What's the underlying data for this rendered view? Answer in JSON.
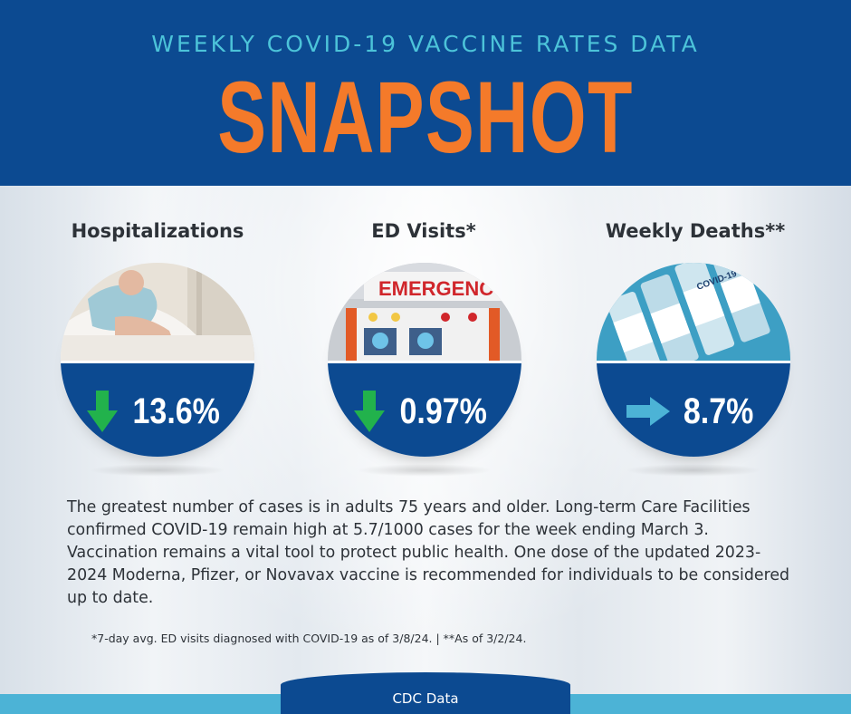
{
  "header": {
    "subtitle": "WEEKLY COVID-19 VACCINE RATES DATA",
    "title": "SNAPSHOT"
  },
  "stats": [
    {
      "label": "Hospitalizations",
      "value": "13.6%",
      "trend": "down",
      "trend_color": "#22b24c"
    },
    {
      "label": "ED Visits*",
      "value": "0.97%",
      "trend": "down",
      "trend_color": "#22b24c",
      "photo_text": "EMERGENCY"
    },
    {
      "label": "Weekly Deaths**",
      "value": "8.7%",
      "trend": "flat",
      "trend_color": "#4cb3d6",
      "photo_text": "COVID-19"
    }
  ],
  "body_text": "The greatest number of cases is in adults 75 years and older. Long-term Care Facilities confirmed COVID-19 remain high at 5.7/1000 cases for the week ending March 3. Vaccination remains a vital tool to protect public health. One dose of the updated 2023-2024 Moderna, Pfizer, or Novavax vaccine is recommended for individuals to be considered up to date.",
  "footnote": "*7-day avg. ED visits diagnosed with COVID-19 as of 3/8/24.  |  **As of 3/2/24.",
  "footer": {
    "source": "CDC Data"
  },
  "colors": {
    "navy": "#0c4a91",
    "orange": "#f47a2a",
    "teal": "#4cc3d9",
    "green": "#22b24c",
    "light_blue": "#4cb3d6"
  }
}
